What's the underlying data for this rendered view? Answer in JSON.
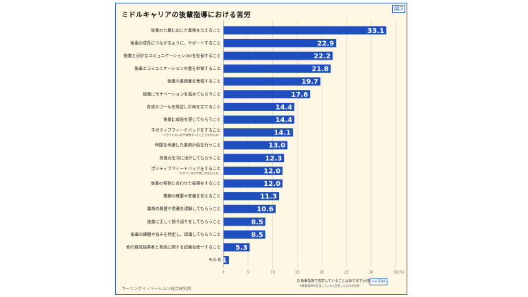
{
  "figure_number": "図3",
  "title": "ミドルキャリアの後輩指導における苦労",
  "source": "ラーニングイノベーション総合研究所",
  "note_question": "Q.後輩指導で苦労していることはありますか",
  "note_question_tag": "(複数回答)",
  "note_sub": "※後輩指導を担当していると回答した方のみ回答",
  "note_n": "n=284",
  "colors": {
    "bar": "#1f4fbf",
    "accent": "#2a5fbf",
    "background": "#fdf7e3"
  },
  "chart_data": {
    "type": "bar",
    "orientation": "horizontal",
    "categories": [
      "後輩の力量に応じた業務を与えること",
      "後輩の成長につながるように、サポートすること",
      "後輩と良好なコミュニケーション(※)を担保すること",
      "後輩とコミュニケーションの量を担保すること",
      "後輩の業務量を管理すること",
      "後輩にモチベーションを高めてもらうこと",
      "育成のゴールを設定し計画を立てること",
      "後輩に成長を感じてもらうこと",
      "ネガティブフィードバックをすること",
      "時間を考慮した業務計画を行うこと",
      "改善点を次に活かしてもらうこと",
      "ポジティブフィードバックをすること",
      "後輩の特性に合わせた指導をすること",
      "業務の概要や意義を伝えること",
      "業務の概要や意義を理解してもらうこと",
      "後輩に正しく振り返りをしてもらうこと",
      "後輩の課題や強みを特定し、認識してもらうこと",
      "他の育成指導者と育成に関する認識を統一すること",
      "その他"
    ],
    "category_notes": {
      "8": "（できていない点や改善すべきところを伝える）",
      "11": "（できている点や良い点を伝える）"
    },
    "values": [
      33.1,
      22.9,
      22.2,
      21.8,
      19.7,
      17.6,
      14.4,
      14.4,
      14.1,
      13.0,
      12.3,
      12.0,
      12.0,
      11.3,
      10.6,
      8.5,
      8.5,
      5.3,
      1.1
    ],
    "value_labels": [
      "33.1",
      "22.9",
      "22.2",
      "21.8",
      "19.7",
      "17.6",
      "14.4",
      "14.4",
      "14.1",
      "13.0",
      "12.3",
      "12.0",
      "12.0",
      "11.3",
      "10.6",
      "8.5",
      "8.5",
      "5.3",
      "1.1"
    ],
    "xlim": [
      0,
      35
    ],
    "xticks": [
      "0",
      "5",
      "10",
      "15",
      "20",
      "25",
      "30",
      "35"
    ],
    "x_unit": "(%)",
    "grid": true
  }
}
